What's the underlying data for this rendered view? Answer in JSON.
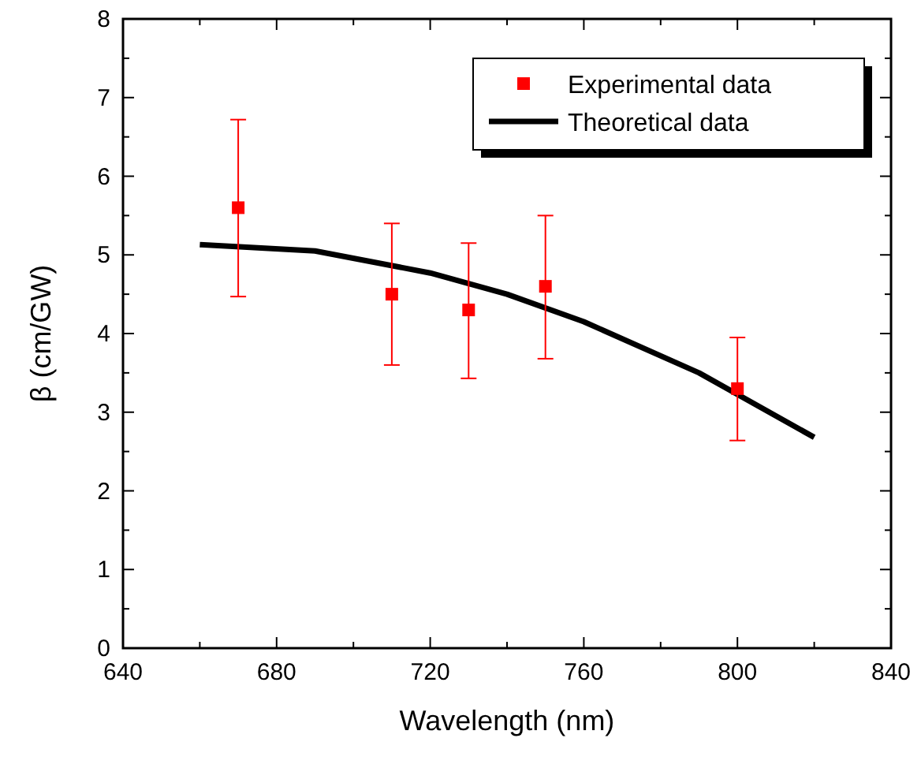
{
  "chart_data": {
    "type": "scatter",
    "xlabel": "Wavelength (nm)",
    "ylabel": "β (cm/GW)",
    "xlim": [
      640,
      840
    ],
    "ylim": [
      0,
      8
    ],
    "xticks": [
      640,
      {
        "value": 660,
        "label": null
      },
      680,
      {
        "value": 700,
        "label": null
      },
      720,
      {
        "value": 740,
        "label": null
      },
      760,
      {
        "value": 780,
        "label": null
      },
      800,
      {
        "value": 820,
        "label": null
      },
      840
    ],
    "yticks": [
      0,
      {
        "value": 0.5,
        "label": null
      },
      1,
      {
        "value": 1.5,
        "label": null
      },
      2,
      {
        "value": 2.5,
        "label": null
      },
      3,
      {
        "value": 3.5,
        "label": null
      },
      4,
      {
        "value": 4.5,
        "label": null
      },
      5,
      {
        "value": 5.5,
        "label": null
      },
      6,
      {
        "value": 6.5,
        "label": null
      },
      7,
      {
        "value": 7.5,
        "label": null
      },
      8
    ],
    "legend": "top right",
    "grid": false,
    "series": [
      {
        "name": "Experimental data",
        "marker": "square",
        "color": "#ff0000",
        "x": [
          670,
          710,
          730,
          750,
          800
        ],
        "values": [
          5.6,
          4.5,
          4.3,
          4.6,
          3.3
        ],
        "errors": [
          [
            4.47,
            6.72
          ],
          [
            3.6,
            5.4
          ],
          [
            3.43,
            5.15
          ],
          [
            3.68,
            5.5
          ],
          [
            2.64,
            3.95
          ]
        ]
      },
      {
        "name": "Theoretical data",
        "type": "line",
        "marker": "none",
        "line_style": "solid",
        "color": "#000000",
        "x": [
          660,
          690,
          720,
          740,
          760,
          790,
          820
        ],
        "values": [
          5.13,
          5.05,
          4.77,
          4.5,
          4.15,
          3.5,
          2.68
        ]
      }
    ]
  }
}
